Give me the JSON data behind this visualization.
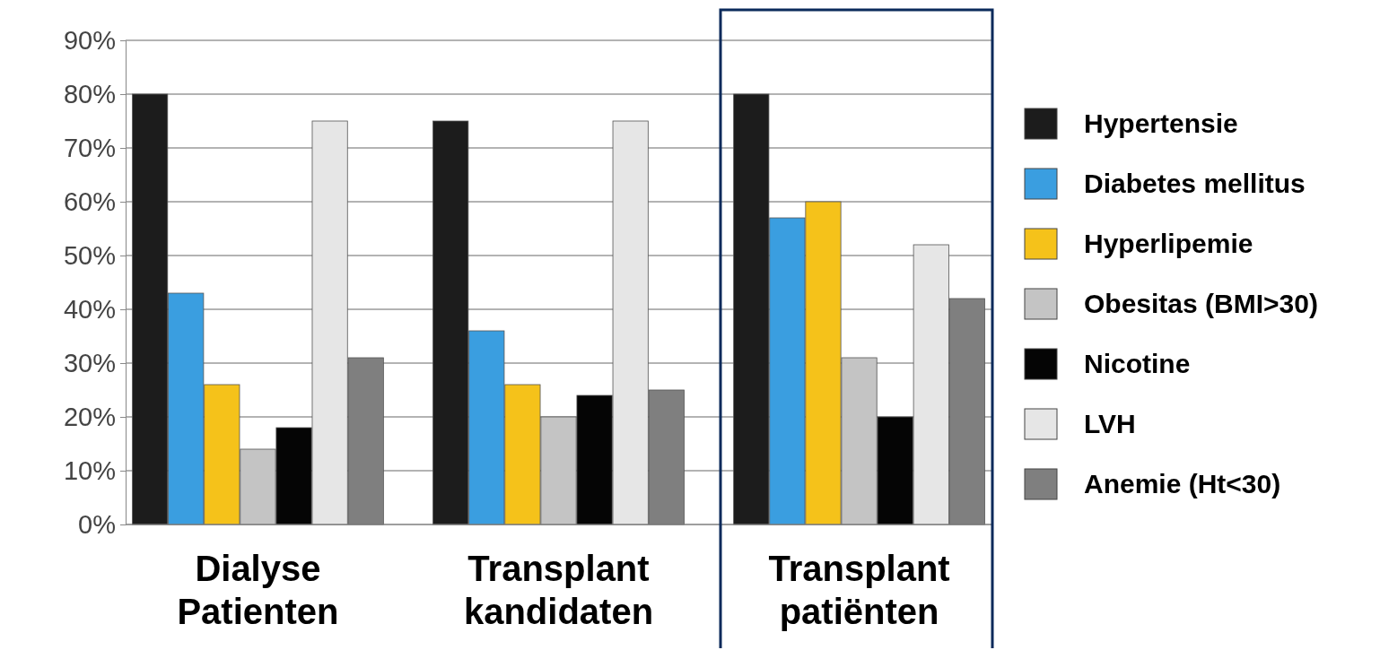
{
  "chart_data": {
    "type": "bar",
    "categories": [
      "Dialyse Patienten",
      "Transplant kandidaten",
      "Transplant patiënten"
    ],
    "series": [
      {
        "name": "Hypertensie",
        "color": "#1c1c1c",
        "values": [
          80,
          75,
          80
        ]
      },
      {
        "name": "Diabetes mellitus",
        "color": "#3a9ee0",
        "values": [
          43,
          36,
          57
        ]
      },
      {
        "name": "Hyperlipemie",
        "color": "#f5c21a",
        "values": [
          26,
          26,
          60
        ]
      },
      {
        "name": "Obesitas (BMI>30)",
        "color": "#c4c4c4",
        "values": [
          14,
          20,
          31
        ]
      },
      {
        "name": "Nicotine",
        "color": "#050505",
        "values": [
          18,
          24,
          20
        ]
      },
      {
        "name": "LVH",
        "color": "#e6e6e6",
        "values": [
          75,
          75,
          52
        ]
      },
      {
        "name": "Anemie (Ht<30)",
        "color": "#7f7f7f",
        "values": [
          31,
          25,
          42
        ]
      }
    ],
    "ylim": [
      0,
      90
    ],
    "yticks": [
      {
        "value": 0,
        "label": "0%"
      },
      {
        "value": 10,
        "label": "10%"
      },
      {
        "value": 20,
        "label": "20%"
      },
      {
        "value": 30,
        "label": "30%"
      },
      {
        "value": 40,
        "label": "40%"
      },
      {
        "value": 50,
        "label": "50%"
      },
      {
        "value": 60,
        "label": "60%"
      },
      {
        "value": 70,
        "label": "70%"
      },
      {
        "value": 80,
        "label": "80%"
      },
      {
        "value": 90,
        "label": "90%"
      }
    ],
    "grid": "y",
    "legend": "right"
  }
}
